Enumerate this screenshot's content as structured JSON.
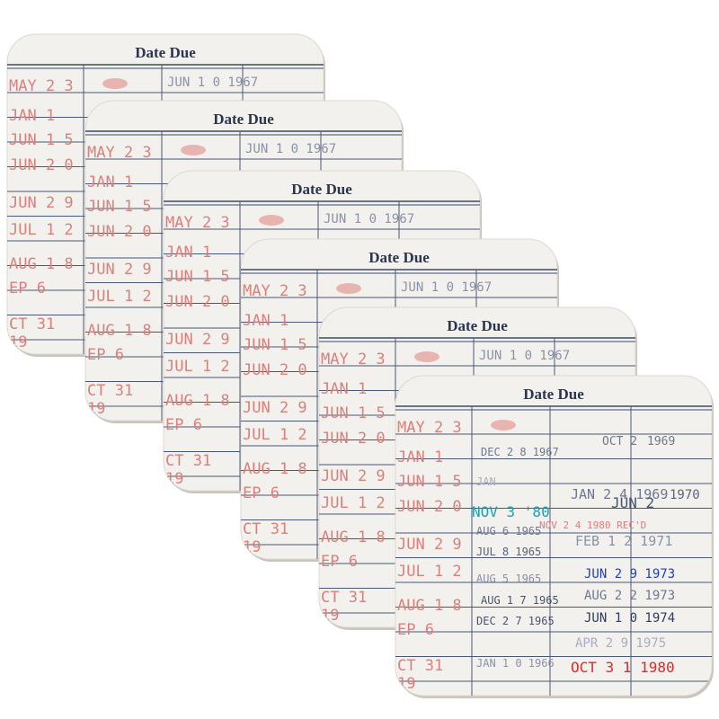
{
  "cards": [
    {
      "title": "Date Due"
    },
    {
      "title": "Date Due"
    },
    {
      "title": "Date Due"
    },
    {
      "title": "Date Due"
    },
    {
      "title": "Date Due"
    },
    {
      "title": "Date Due"
    }
  ],
  "left_stamps": [
    "MAY 2 3",
    "JAN 1",
    "JUN 1 5",
    "JUN 2 0",
    "JUN 2 9",
    "JUL 1 2",
    "AUG 1 8",
    "EP 6",
    "CT 31",
    "19"
  ],
  "back_stamp": "JUN 1 0 1967",
  "stamps": [
    "DEC 2 8 1967",
    "OCT 2",
    "1969",
    "JAN",
    "JAN 2 4 1969",
    "NOV 3 '80",
    "JUN 2",
    "1970",
    "NOV 2 4 1980 REC'D",
    "AUG 6 1965",
    "FEB 1 2 1971",
    "JUL 8 1965",
    "JUN 2 9 1973",
    "AUG 5 1965",
    "AUG 2 2 1973",
    "AUG 1 7 1965",
    "JUN 1 0 1974",
    "DEC 2 7 1965",
    "APR 2 9 1975",
    "JAN 1 0 1966",
    "OCT 3 1 1980"
  ]
}
